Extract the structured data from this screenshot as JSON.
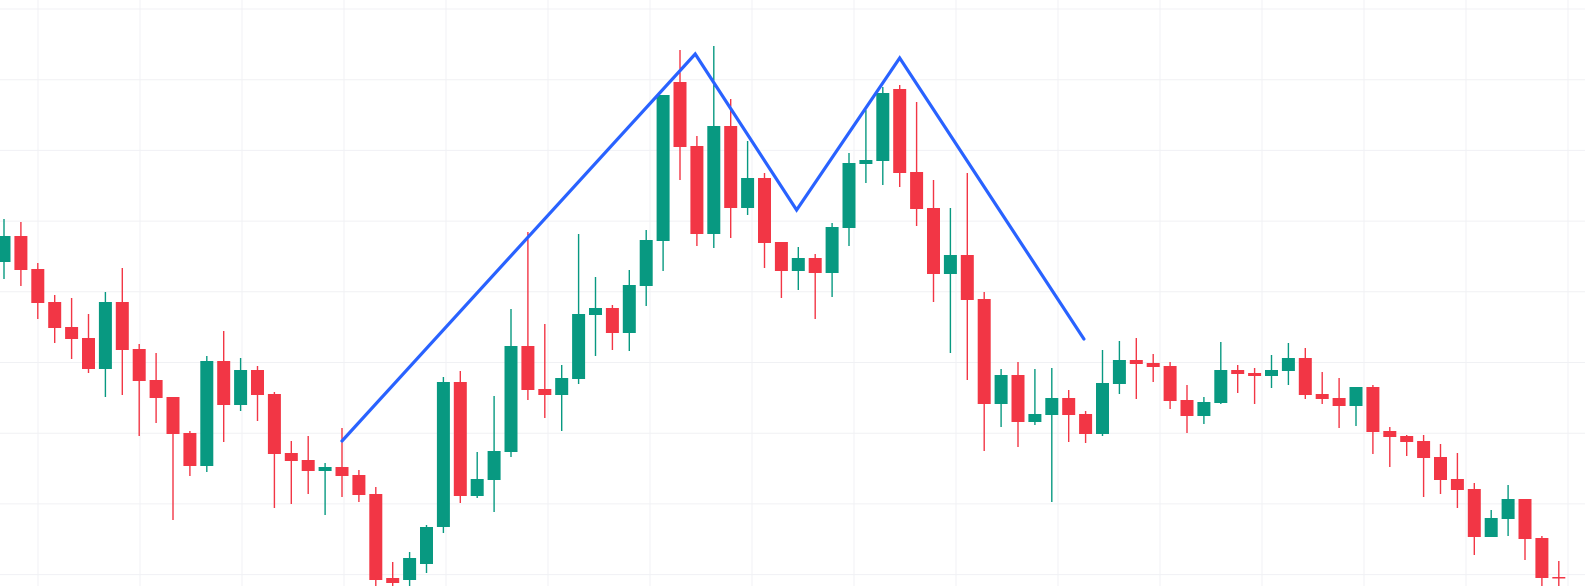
{
  "chart_data": {
    "type": "candlestick",
    "title": "",
    "xlabel": "",
    "ylabel": "",
    "grid": true,
    "axes_visible": false,
    "ylim": [
      14,
      600
    ],
    "ohlc_columns": [
      "open",
      "high",
      "low",
      "close"
    ],
    "candles": [
      [
        338,
        381,
        321,
        364
      ],
      [
        364,
        378,
        314,
        330
      ],
      [
        331,
        337,
        281,
        297
      ],
      [
        298,
        305,
        257,
        272
      ],
      [
        273,
        302,
        241,
        261
      ],
      [
        262,
        286,
        227,
        231
      ],
      [
        231,
        308,
        203,
        298
      ],
      [
        298,
        332,
        205,
        250
      ],
      [
        251,
        256,
        164,
        219
      ],
      [
        220,
        247,
        177,
        202
      ],
      [
        203,
        203,
        80,
        166
      ],
      [
        167,
        169,
        124,
        134
      ],
      [
        134,
        244,
        128,
        239
      ],
      [
        239,
        269,
        158,
        195
      ],
      [
        195,
        242,
        189,
        230
      ],
      [
        230,
        234,
        179,
        205
      ],
      [
        206,
        208,
        92,
        146
      ],
      [
        147,
        159,
        96,
        139
      ],
      [
        140,
        164,
        106,
        129
      ],
      [
        129,
        137,
        85,
        133
      ],
      [
        133,
        172,
        103,
        124
      ],
      [
        125,
        130,
        98,
        105
      ],
      [
        106,
        113,
        14,
        20
      ],
      [
        22,
        38,
        14,
        17
      ],
      [
        20,
        48,
        14,
        42
      ],
      [
        36,
        75,
        27,
        73
      ],
      [
        73,
        223,
        67,
        218
      ],
      [
        218,
        229,
        97,
        104
      ],
      [
        104,
        148,
        102,
        121
      ],
      [
        120,
        204,
        88,
        149
      ],
      [
        148,
        291,
        143,
        254
      ],
      [
        254,
        368,
        200,
        210
      ],
      [
        211,
        276,
        182,
        205
      ],
      [
        205,
        235,
        169,
        222
      ],
      [
        221,
        366,
        216,
        286
      ],
      [
        285,
        323,
        244,
        292
      ],
      [
        292,
        295,
        250,
        267
      ],
      [
        267,
        330,
        249,
        315
      ],
      [
        314,
        370,
        294,
        360
      ],
      [
        359,
        505,
        329,
        505
      ],
      [
        518,
        550,
        420,
        453
      ],
      [
        454,
        464,
        354,
        366
      ],
      [
        366,
        554,
        352,
        474
      ],
      [
        474,
        501,
        362,
        392
      ],
      [
        392,
        459,
        385,
        422
      ],
      [
        422,
        427,
        332,
        357
      ],
      [
        358,
        358,
        302,
        329
      ],
      [
        329,
        353,
        310,
        342
      ],
      [
        342,
        346,
        281,
        327
      ],
      [
        327,
        377,
        303,
        373
      ],
      [
        372,
        447,
        354,
        437
      ],
      [
        436,
        490,
        417,
        440
      ],
      [
        439,
        513,
        415,
        507
      ],
      [
        511,
        515,
        413,
        427
      ],
      [
        428,
        498,
        374,
        391
      ],
      [
        392,
        420,
        298,
        326
      ],
      [
        326,
        392,
        247,
        345
      ],
      [
        345,
        427,
        220,
        300
      ],
      [
        301,
        308,
        149,
        196
      ],
      [
        196,
        231,
        173,
        225
      ],
      [
        225,
        238,
        153,
        178
      ],
      [
        178,
        231,
        175,
        186
      ],
      [
        185,
        232,
        98,
        202
      ],
      [
        202,
        210,
        158,
        185
      ],
      [
        186,
        189,
        157,
        166
      ],
      [
        166,
        250,
        164,
        217
      ],
      [
        216,
        259,
        206,
        240
      ],
      [
        240,
        262,
        201,
        236
      ],
      [
        237,
        246,
        218,
        233
      ],
      [
        234,
        238,
        191,
        199
      ],
      [
        200,
        215,
        167,
        184
      ],
      [
        184,
        203,
        176,
        198
      ],
      [
        197,
        258,
        196,
        230
      ],
      [
        230,
        235,
        207,
        226
      ],
      [
        227,
        232,
        196,
        224
      ],
      [
        224,
        245,
        212,
        230
      ],
      [
        229,
        257,
        215,
        242
      ],
      [
        242,
        252,
        201,
        205
      ],
      [
        206,
        228,
        196,
        201
      ],
      [
        202,
        222,
        172,
        194
      ],
      [
        194,
        213,
        174,
        213
      ],
      [
        213,
        215,
        146,
        168
      ],
      [
        169,
        173,
        133,
        163
      ],
      [
        164,
        165,
        144,
        158
      ],
      [
        159,
        165,
        103,
        142
      ],
      [
        143,
        156,
        106,
        120
      ],
      [
        121,
        147,
        92,
        110
      ],
      [
        111,
        117,
        45,
        63
      ],
      [
        63,
        90,
        63,
        82
      ],
      [
        81,
        115,
        64,
        101
      ],
      [
        101,
        101,
        40,
        61
      ],
      [
        62,
        64,
        14,
        22
      ],
      [
        23,
        39,
        14,
        22
      ]
    ],
    "pattern_line": {
      "name": "",
      "color": "#2962ff",
      "points": [
        {
          "bar": 20,
          "price": 159
        },
        {
          "bar": 40.9,
          "price": 546
        },
        {
          "bar": 46.9,
          "price": 390
        },
        {
          "bar": 53,
          "price": 542
        },
        {
          "bar": 63.9,
          "price": 261
        }
      ]
    },
    "colors": {
      "up": "#089981",
      "down": "#f23645",
      "grid": "#f0f1f4",
      "background": "#ffffff"
    }
  }
}
